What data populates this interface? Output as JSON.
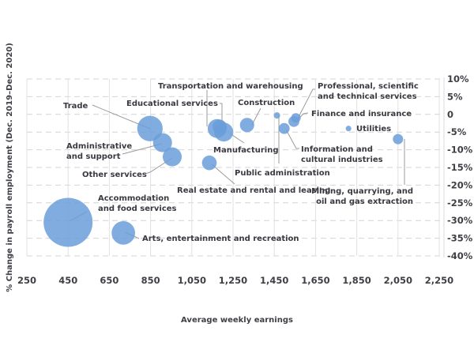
{
  "chart_data": {
    "type": "scatter",
    "subtype": "bubble",
    "title": "",
    "xlabel": "Average weekly earnings",
    "ylabel": "% Change in payroll employment (Dec. 2019–Dec. 2020)",
    "xlim": [
      250,
      2250
    ],
    "ylim": [
      -40,
      10
    ],
    "x_ticks": [
      "250",
      "450",
      "650",
      "850",
      "1,050",
      "1,250",
      "1,450",
      "1,650",
      "1,850",
      "2,050",
      "2,250"
    ],
    "x_tick_values": [
      250,
      450,
      650,
      850,
      1050,
      1250,
      1450,
      1650,
      1850,
      2050,
      2250
    ],
    "y_ticks": [
      "10%",
      "5%",
      "0",
      "-5%",
      "-10%",
      "-15%",
      "-20%",
      "-25%",
      "-30%",
      "-35%",
      "-40%"
    ],
    "y_tick_values": [
      10,
      5,
      0,
      -5,
      -10,
      -15,
      -20,
      -25,
      -30,
      -35,
      -40
    ],
    "y_axis_side": "right",
    "grid": true,
    "legend": "none",
    "bubble_color": "#6a9ed9",
    "size_note": "bubble area proportional to relative employment size (relative units)",
    "points": [
      {
        "name": "Accommodation and food services",
        "label_lines": [
          "Accommodation",
          "and food services"
        ],
        "x": 450,
        "y": -30.5,
        "size": 100
      },
      {
        "name": "Arts, entertainment and recreation",
        "label_lines": [
          "Arts, entertainment and recreation"
        ],
        "x": 718,
        "y": -33.5,
        "size": 23
      },
      {
        "name": "Trade",
        "label_lines": [
          "Trade"
        ],
        "x": 847,
        "y": -4,
        "size": 27
      },
      {
        "name": "Administrative and support",
        "label_lines": [
          "Administrative",
          "and support"
        ],
        "x": 908,
        "y": -8,
        "size": 15
      },
      {
        "name": "Other services",
        "label_lines": [
          "Other services"
        ],
        "x": 955,
        "y": -12,
        "size": 15
      },
      {
        "name": "Real estate and rental and leasing",
        "label_lines": [
          "Real estate and rental and leasing"
        ],
        "x": 1135,
        "y": -13.7,
        "size": 9
      },
      {
        "name": "Educational services",
        "label_lines": [
          "Educational services"
        ],
        "x": 1173,
        "y": -4,
        "size": 15
      },
      {
        "name": "Transportation and warehousing",
        "label_lines": [
          "Transportation and warehousing"
        ],
        "x": 1185,
        "y": -3.5,
        "size": 8.5
      },
      {
        "name": "Manufacturing",
        "label_lines": [
          "Manufacturing"
        ],
        "x": 1205,
        "y": -5,
        "size": 15
      },
      {
        "name": "Construction",
        "label_lines": [
          "Construction"
        ],
        "x": 1318,
        "y": -3,
        "size": 8.5
      },
      {
        "name": "Public administration",
        "label_lines": [
          "Public administration"
        ],
        "x": 1463,
        "y": -0.3,
        "size": 1.7
      },
      {
        "name": "Information and cultural industries",
        "label_lines": [
          "Information and",
          "cultural industries"
        ],
        "x": 1498,
        "y": -4,
        "size": 5
      },
      {
        "name": "Finance and insurance",
        "label_lines": [
          "Finance and insurance"
        ],
        "x": 1545,
        "y": -2,
        "size": 5
      },
      {
        "name": "Professional, scientific and technical services",
        "label_lines": [
          "Professional, scientific",
          "and technical services"
        ],
        "x": 1555,
        "y": -1,
        "size": 3.8
      },
      {
        "name": "Utilities",
        "label_lines": [
          "Utilities"
        ],
        "x": 1810,
        "y": -4,
        "size": 1.3
      },
      {
        "name": "Mining, quarrying, and oil and gas extraction",
        "label_lines": [
          "Mining, quarrying, and",
          "oil and gas extraction"
        ],
        "x": 2050,
        "y": -7,
        "size": 4.4
      }
    ]
  }
}
